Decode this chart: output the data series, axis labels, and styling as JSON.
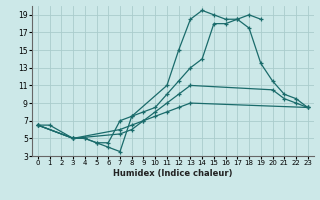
{
  "xlabel": "Humidex (Indice chaleur)",
  "bg_color": "#cce8e8",
  "grid_color": "#aacccc",
  "line_color": "#1a6b6b",
  "xlim": [
    -0.5,
    23.5
  ],
  "ylim": [
    3,
    20
  ],
  "xticks": [
    0,
    1,
    2,
    3,
    4,
    5,
    6,
    7,
    8,
    9,
    10,
    11,
    12,
    13,
    14,
    15,
    16,
    17,
    18,
    19,
    20,
    21,
    22,
    23
  ],
  "yticks": [
    3,
    5,
    7,
    9,
    11,
    13,
    15,
    17,
    19
  ],
  "line1_x": [
    0,
    1,
    3,
    4,
    5,
    6,
    7,
    8,
    11,
    12,
    13,
    14,
    15,
    16,
    17,
    18,
    19
  ],
  "line1_y": [
    6.5,
    6.5,
    5.0,
    5.0,
    4.5,
    4.0,
    3.5,
    7.5,
    11.0,
    15.0,
    18.5,
    19.5,
    19.0,
    18.5,
    18.5,
    19.0,
    18.5
  ],
  "line2_x": [
    0,
    3,
    4,
    5,
    6,
    7,
    8,
    9,
    10,
    11,
    12,
    13,
    14,
    15,
    16,
    17,
    18,
    19,
    20,
    21,
    22,
    23
  ],
  "line2_y": [
    6.5,
    5.0,
    5.0,
    4.5,
    4.5,
    7.0,
    7.5,
    8.0,
    8.5,
    10.0,
    11.5,
    13.0,
    14.0,
    18.0,
    18.0,
    18.5,
    17.5,
    13.5,
    11.5,
    10.0,
    9.5,
    8.5
  ],
  "line3_x": [
    0,
    3,
    7,
    8,
    9,
    10,
    11,
    12,
    13,
    20,
    21,
    22,
    23
  ],
  "line3_y": [
    6.5,
    5.0,
    5.5,
    6.0,
    7.0,
    8.0,
    9.0,
    10.0,
    11.0,
    10.5,
    9.5,
    9.0,
    8.5
  ],
  "line4_x": [
    0,
    3,
    7,
    8,
    9,
    10,
    11,
    12,
    13,
    23
  ],
  "line4_y": [
    6.5,
    5.0,
    6.0,
    6.5,
    7.0,
    7.5,
    8.0,
    8.5,
    9.0,
    8.5
  ]
}
